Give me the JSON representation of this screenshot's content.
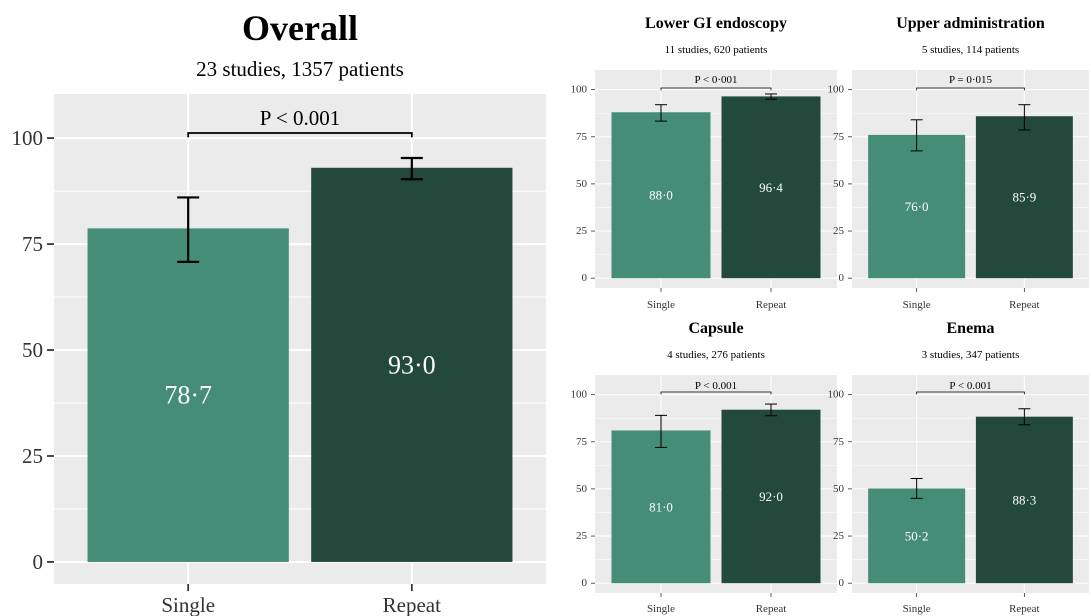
{
  "colors": {
    "single": "#458d77",
    "repeat": "#23483c",
    "panel_bg": "#ebebeb",
    "grid": "#ffffff"
  },
  "chart_data": [
    {
      "type": "bar",
      "title": "Overall",
      "subtitle": "23 studies, 1357 patients",
      "categories": [
        "Single",
        "Repeat"
      ],
      "values": [
        78.7,
        93.0
      ],
      "value_labels": [
        "78·7",
        "93·0"
      ],
      "error_bars": [
        [
          70.8,
          86.0
        ],
        [
          90.3,
          95.3
        ]
      ],
      "p_value": "P < 0.001",
      "yticks": [
        "0",
        "25",
        "50",
        "75",
        "100"
      ],
      "ylim": [
        0,
        100
      ],
      "grid": true
    },
    {
      "type": "bar",
      "title": "Lower GI endoscopy",
      "subtitle": "11 studies, 620 patients",
      "categories": [
        "Single",
        "Repeat"
      ],
      "values": [
        88.0,
        96.4
      ],
      "value_labels": [
        "88·0",
        "96·4"
      ],
      "error_bars": [
        [
          83.3,
          92.0
        ],
        [
          94.9,
          97.7
        ]
      ],
      "p_value": "P < 0·001",
      "yticks": [
        "0",
        "25",
        "50",
        "75",
        "100"
      ],
      "ylim": [
        0,
        100
      ],
      "grid": true
    },
    {
      "type": "bar",
      "title": "Upper administration",
      "subtitle": "5 studies, 114 patients",
      "categories": [
        "Single",
        "Repeat"
      ],
      "values": [
        76.0,
        85.9
      ],
      "value_labels": [
        "76·0",
        "85·9"
      ],
      "error_bars": [
        [
          67.5,
          84.0
        ],
        [
          78.6,
          92.0
        ]
      ],
      "p_value": "P = 0·015",
      "yticks": [
        "0",
        "25",
        "50",
        "75",
        "100"
      ],
      "ylim": [
        0,
        100
      ],
      "grid": true
    },
    {
      "type": "bar",
      "title": "Capsule",
      "subtitle": "4 studies, 276 patients",
      "categories": [
        "Single",
        "Repeat"
      ],
      "values": [
        81.0,
        92.0
      ],
      "value_labels": [
        "81·0",
        "92·0"
      ],
      "error_bars": [
        [
          72.0,
          89.0
        ],
        [
          88.8,
          95.0
        ]
      ],
      "p_value": "P < 0.001",
      "yticks": [
        "0",
        "25",
        "50",
        "75",
        "100"
      ],
      "ylim": [
        0,
        100
      ],
      "grid": true
    },
    {
      "type": "bar",
      "title": "Enema",
      "subtitle": "3 studies, 347 patients",
      "categories": [
        "Single",
        "Repeat"
      ],
      "values": [
        50.2,
        88.3
      ],
      "value_labels": [
        "50·2",
        "88·3"
      ],
      "error_bars": [
        [
          45.0,
          55.5
        ],
        [
          84.0,
          92.5
        ]
      ],
      "p_value": "P < 0.001",
      "yticks": [
        "0",
        "25",
        "50",
        "75",
        "100"
      ],
      "ylim": [
        0,
        100
      ],
      "grid": true
    }
  ]
}
